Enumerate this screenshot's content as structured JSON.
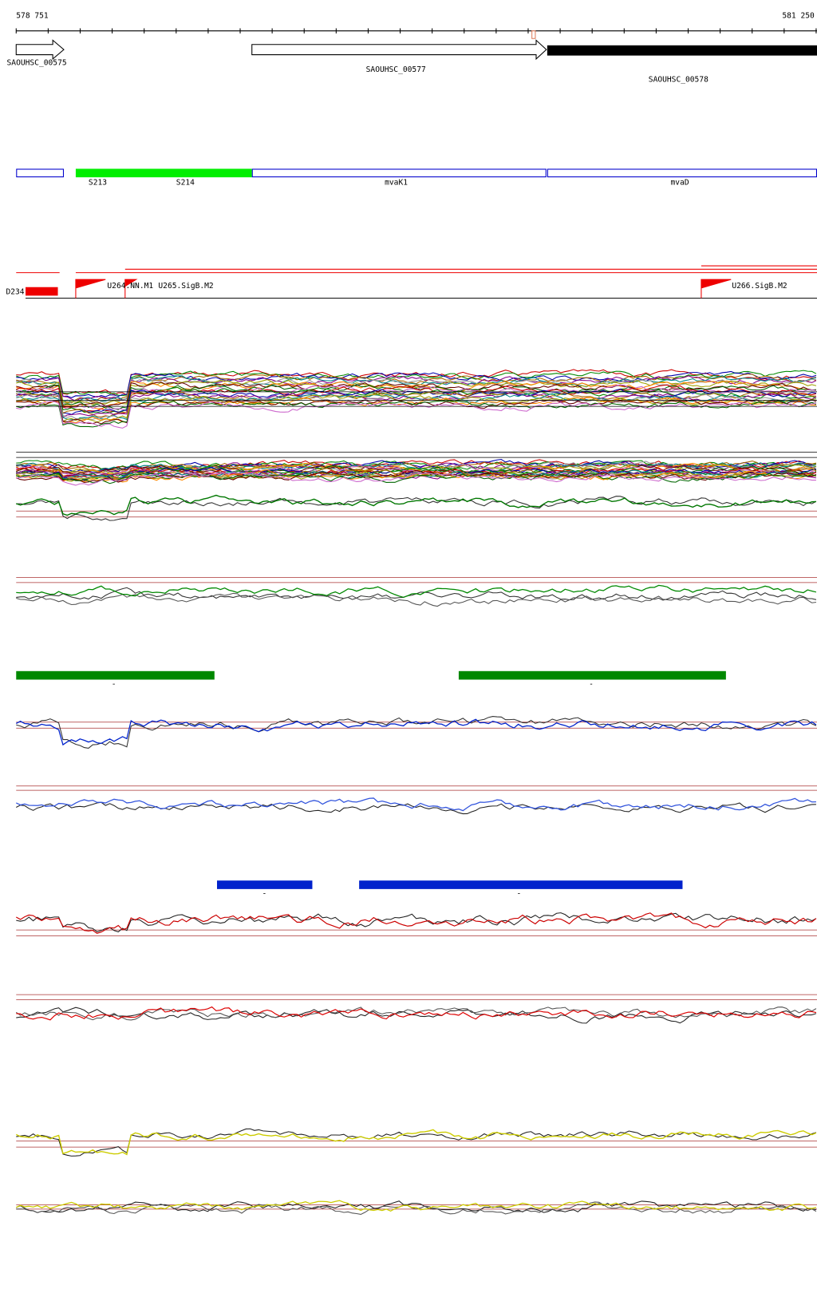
{
  "ruler": {
    "start": "578 751",
    "end": "581 250"
  },
  "genes": [
    {
      "label": "SAOUHSC_00575"
    },
    {
      "label": "SAOUHSC_00577"
    },
    {
      "label": "SAOUHSC_00578"
    }
  ],
  "features": [
    {
      "label": "S213"
    },
    {
      "label": "S214"
    },
    {
      "label": "mvaK1"
    },
    {
      "label": "mvaD"
    }
  ],
  "promoters": [
    {
      "label": "D234"
    },
    {
      "label": "U264.NN.M1"
    },
    {
      "label": "U265.SigB.M2"
    },
    {
      "label": "U266.SigB.M2"
    }
  ],
  "segments": [
    {
      "label": "-"
    },
    {
      "label": "-"
    },
    {
      "label": "-"
    },
    {
      "label": "-"
    }
  ]
}
